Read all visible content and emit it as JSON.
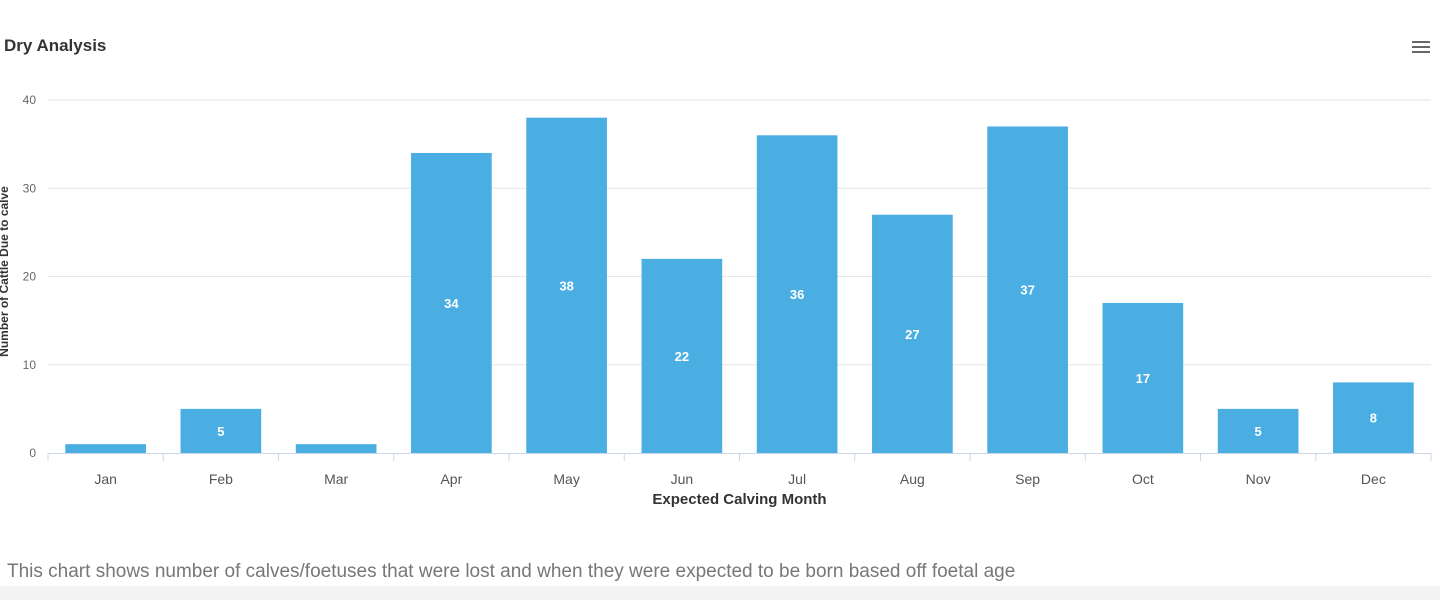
{
  "header": {
    "title": "Dry Analysis",
    "menu_icon": "hamburger-menu-icon"
  },
  "description": "This chart shows number of calves/foetuses that were lost and when they were expected to be born based off foetal age",
  "chart_data": {
    "type": "bar",
    "title": "Dry Analysis",
    "xlabel": "Expected Calving Month",
    "ylabel": "Number of Cattle Due to calve",
    "categories": [
      "Jan",
      "Feb",
      "Mar",
      "Apr",
      "May",
      "Jun",
      "Jul",
      "Aug",
      "Sep",
      "Oct",
      "Nov",
      "Dec"
    ],
    "values": [
      1,
      5,
      1,
      34,
      38,
      22,
      36,
      27,
      37,
      17,
      5,
      8
    ],
    "data_labels": [
      "",
      "5",
      "",
      "34",
      "38",
      "22",
      "36",
      "27",
      "37",
      "17",
      "5",
      "8"
    ],
    "yticks": [
      "0",
      "10",
      "20",
      "30",
      "40"
    ],
    "ylim": [
      0,
      40
    ],
    "grid": true,
    "legend": "none",
    "bar_color": "#4aaee3",
    "label_color": "#ffffff"
  }
}
